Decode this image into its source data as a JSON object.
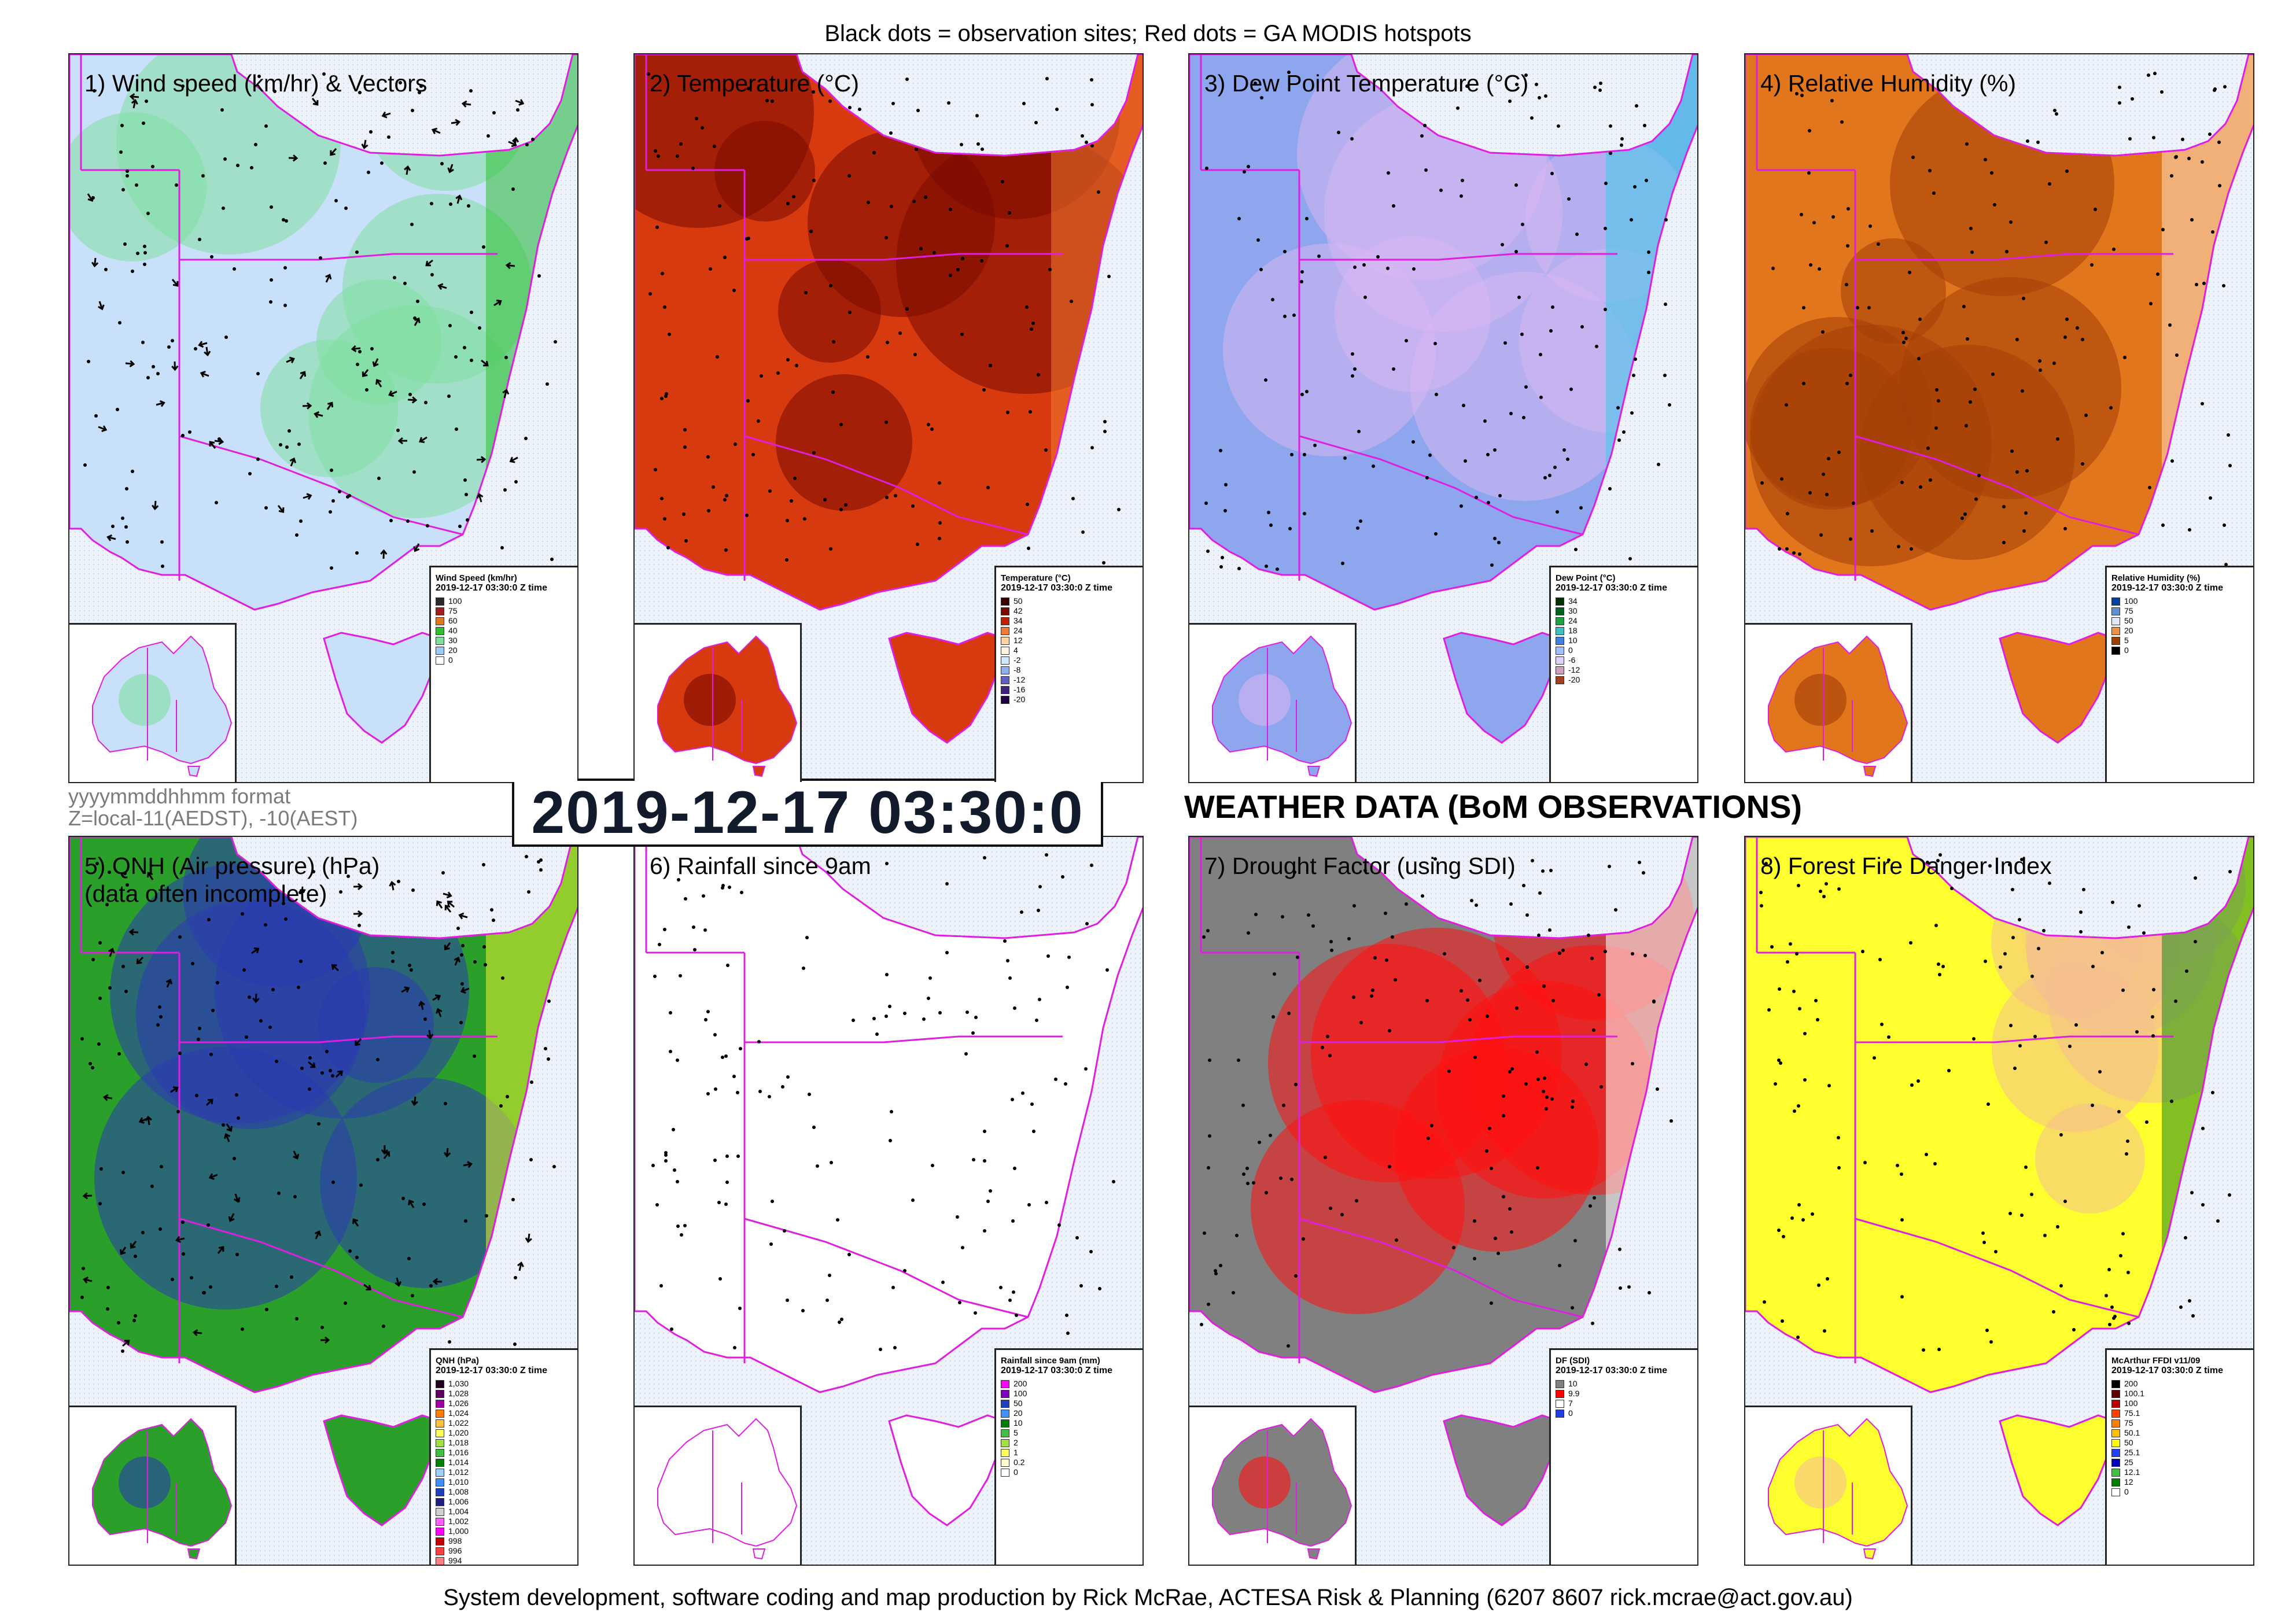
{
  "header": "Black dots = observation sites; Red dots = GA MODIS hotspots",
  "footer": "System development, software coding and map production by Rick McRae, ACTESA Risk & Planning (6207 8607 rick.mcrae@act.gov.au)",
  "format_note": {
    "line1": "yyyymmddhhmm format",
    "line2": "Z=local-11(AEDST), -10(AEST)"
  },
  "big_date": "2019-12-17 03:30:0",
  "section_title": "WEATHER DATA (BoM OBSERVATIONS)",
  "panels": [
    {
      "title": "1) Wind speed (km/hr) & Vectors",
      "legend_title": "Wind Speed (km/hr)",
      "legend_date": "2019-12-17 03:30:0 Z time",
      "legend_items": [
        {
          "label": "100",
          "color": "#2a2a2a"
        },
        {
          "label": "75",
          "color": "#a02020"
        },
        {
          "label": "60",
          "color": "#e07a20"
        },
        {
          "label": "40",
          "color": "#2fbf2f"
        },
        {
          "label": "30",
          "color": "#7fdf9f"
        },
        {
          "label": "20",
          "color": "#9ccaf2"
        },
        {
          "label": "0",
          "color": "#ffffff"
        }
      ],
      "colors": {
        "land_base": "#c9e0fa",
        "land_accent": "#7fdf9f",
        "coast_accent": "#2fbf2f"
      }
    },
    {
      "title": "2) Temperature (°C)",
      "legend_title": "Temperature (°C)",
      "legend_date": "2019-12-17 03:30:0 Z time",
      "legend_items": [
        {
          "label": "50",
          "color": "#3a0000"
        },
        {
          "label": "42",
          "color": "#7a0a00"
        },
        {
          "label": "34",
          "color": "#c02000"
        },
        {
          "label": "24",
          "color": "#f07a30"
        },
        {
          "label": "12",
          "color": "#ffd0a0"
        },
        {
          "label": "4",
          "color": "#fff2e0"
        },
        {
          "label": "-2",
          "color": "#d0e8ff"
        },
        {
          "label": "-8",
          "color": "#8fb0f0"
        },
        {
          "label": "-12",
          "color": "#6060c0"
        },
        {
          "label": "-16",
          "color": "#402080"
        },
        {
          "label": "-20",
          "color": "#200040"
        }
      ],
      "colors": {
        "land_base": "#d83a10",
        "land_accent": "#7a0a00",
        "coast_accent": "#f07a30"
      }
    },
    {
      "title": "3) Dew Point Temperature (°C)",
      "legend_title": "Dew Point (°C)",
      "legend_date": "2019-12-17 03:30:0 Z time",
      "legend_items": [
        {
          "label": "34",
          "color": "#003000"
        },
        {
          "label": "30",
          "color": "#006020"
        },
        {
          "label": "24",
          "color": "#20a040"
        },
        {
          "label": "18",
          "color": "#40c0c0"
        },
        {
          "label": "10",
          "color": "#4080e0"
        },
        {
          "label": "0",
          "color": "#a0c0ff"
        },
        {
          "label": "-6",
          "color": "#e0d0ff"
        },
        {
          "label": "-12",
          "color": "#d0a0c0"
        },
        {
          "label": "-20",
          "color": "#a04020"
        }
      ],
      "colors": {
        "land_base": "#8da6ee",
        "land_accent": "#d7b6f2",
        "coast_accent": "#3fc8e8"
      }
    },
    {
      "title": "4) Relative Humidity (%)",
      "legend_title": "Relative Humidity (%)",
      "legend_date": "2019-12-17 03:30:0 Z time",
      "legend_items": [
        {
          "label": "100",
          "color": "#0040a0"
        },
        {
          "label": "75",
          "color": "#6090d0"
        },
        {
          "label": "50",
          "color": "#e0e8f8"
        },
        {
          "label": "20",
          "color": "#f09040"
        },
        {
          "label": "5",
          "color": "#a04000"
        },
        {
          "label": "0",
          "color": "#000000"
        }
      ],
      "colors": {
        "land_base": "#e2761c",
        "land_accent": "#a43e08",
        "coast_accent": "#fbe0c4"
      }
    },
    {
      "title": "5) QNH (Air pressure) (hPa)\n(data often incomplete)",
      "legend_title": "QNH (hPa)",
      "legend_date": "2019-12-17 03:30:0 Z time",
      "legend_items": [
        {
          "label": "1,030",
          "color": "#200020"
        },
        {
          "label": "1,028",
          "color": "#600060"
        },
        {
          "label": "1,026",
          "color": "#a000a0"
        },
        {
          "label": "1,024",
          "color": "#ff8000"
        },
        {
          "label": "1,022",
          "color": "#ffc040"
        },
        {
          "label": "1,020",
          "color": "#ffff60"
        },
        {
          "label": "1,018",
          "color": "#a0e040"
        },
        {
          "label": "1,016",
          "color": "#40c040"
        },
        {
          "label": "1,014",
          "color": "#008000"
        },
        {
          "label": "1,012",
          "color": "#a0d0ff"
        },
        {
          "label": "1,010",
          "color": "#4090ff"
        },
        {
          "label": "1,008",
          "color": "#2040c0"
        },
        {
          "label": "1,006",
          "color": "#202080"
        },
        {
          "label": "1,004",
          "color": "#d0d0d0"
        },
        {
          "label": "1,002",
          "color": "#ff60ff"
        },
        {
          "label": "1,000",
          "color": "#ff00ff"
        },
        {
          "label": "998",
          "color": "#c00000"
        },
        {
          "label": "996",
          "color": "#ff4040"
        },
        {
          "label": "994",
          "color": "#ff8080"
        }
      ],
      "colors": {
        "land_base": "#2aa02a",
        "land_accent": "#2a3ab0",
        "coast_accent": "#e8f030"
      }
    },
    {
      "title": "6) Rainfall since 9am",
      "legend_title": "Rainfall since 9am (mm)",
      "legend_date": "2019-12-17 03:30:0 Z time",
      "legend_items": [
        {
          "label": "200",
          "color": "#ff00ff"
        },
        {
          "label": "100",
          "color": "#8000c0"
        },
        {
          "label": "50",
          "color": "#2040c0"
        },
        {
          "label": "20",
          "color": "#4090ff"
        },
        {
          "label": "10",
          "color": "#008000"
        },
        {
          "label": "5",
          "color": "#40c040"
        },
        {
          "label": "2",
          "color": "#a0e040"
        },
        {
          "label": "1",
          "color": "#ffff60"
        },
        {
          "label": "0.2",
          "color": "#ffffd0"
        },
        {
          "label": "0",
          "color": "#ffffff"
        }
      ],
      "colors": {
        "land_base": "#ffffff",
        "land_accent": "#ffffff",
        "coast_accent": "#ffffff"
      }
    },
    {
      "title": "7) Drought Factor (using SDI)",
      "legend_title": "DF (SDI)",
      "legend_date": "2019-12-17 03:30:0 Z time",
      "legend_items": [
        {
          "label": "10",
          "color": "#808080"
        },
        {
          "label": "9.9",
          "color": "#ff0000"
        },
        {
          "label": "7",
          "color": "#ffffff"
        },
        {
          "label": "0",
          "color": "#2040e0"
        }
      ],
      "colors": {
        "land_base": "#808080",
        "land_accent": "#ff1010",
        "coast_accent": "#ffffff"
      }
    },
    {
      "title": "8) Forest Fire Danger Index",
      "legend_title": "McArthur FFDI v11/09",
      "legend_date": "2019-12-17 03:30:0 Z time",
      "legend_items": [
        {
          "label": "200",
          "color": "#000000"
        },
        {
          "label": "100.1",
          "color": "#600000"
        },
        {
          "label": "100",
          "color": "#c00000"
        },
        {
          "label": "75.1",
          "color": "#ff4000"
        },
        {
          "label": "75",
          "color": "#ff8000"
        },
        {
          "label": "50.1",
          "color": "#ffc000"
        },
        {
          "label": "50",
          "color": "#ffff00"
        },
        {
          "label": "25.1",
          "color": "#2040ff"
        },
        {
          "label": "25",
          "color": "#0000c0"
        },
        {
          "label": "12.1",
          "color": "#40c040"
        },
        {
          "label": "12",
          "color": "#008000"
        },
        {
          "label": "0",
          "color": "#ffffff"
        }
      ],
      "colors": {
        "land_base": "#ffff30",
        "land_accent": "#f4c090",
        "coast_accent": "#1a8a1a"
      }
    }
  ]
}
